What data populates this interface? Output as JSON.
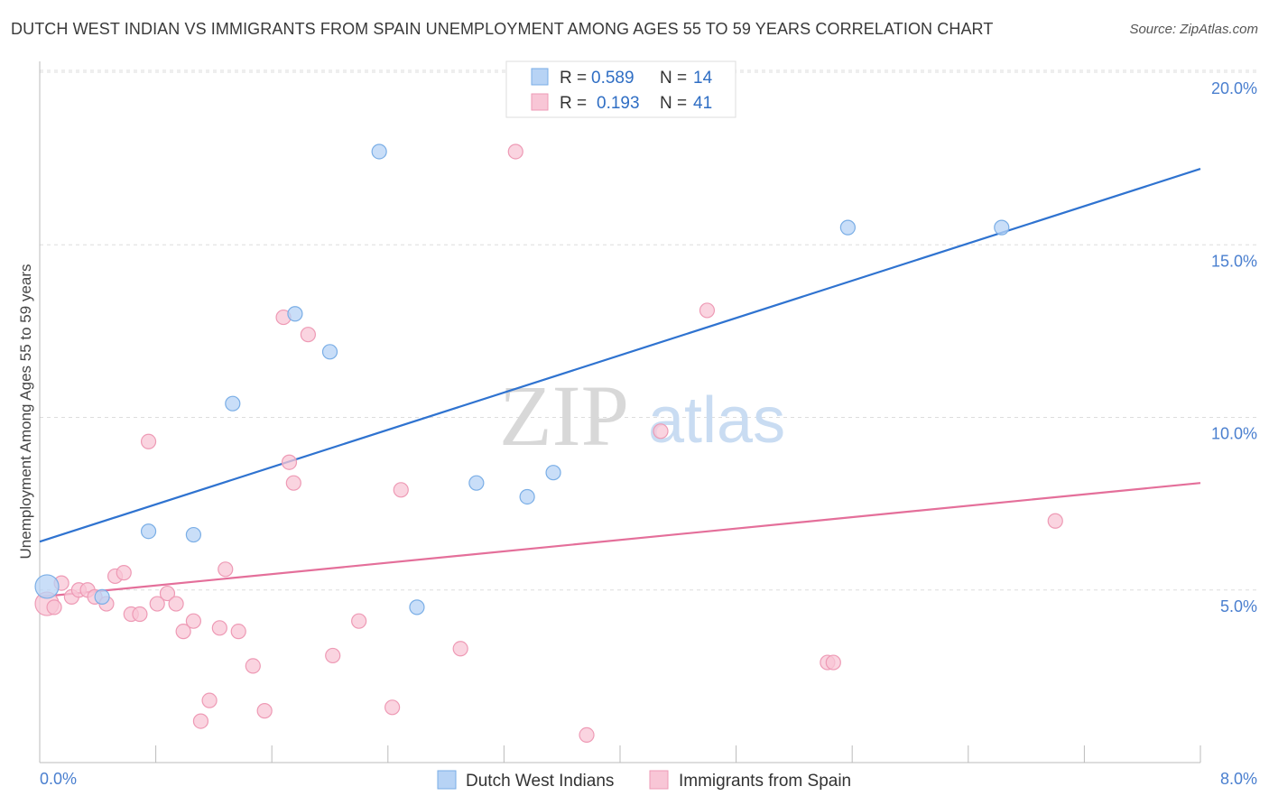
{
  "header": {
    "title": "DUTCH WEST INDIAN VS IMMIGRANTS FROM SPAIN UNEMPLOYMENT AMONG AGES 55 TO 59 YEARS CORRELATION CHART",
    "source": "Source: ZipAtlas.com"
  },
  "watermark": {
    "zip": "ZIP",
    "atlas": "atlas"
  },
  "colors": {
    "blue_fill": "#b7d3f5",
    "blue_stroke": "#7aaee6",
    "blue_line": "#2f73d0",
    "pink_fill": "#f8c6d6",
    "pink_stroke": "#ee9ab5",
    "pink_line": "#e46f9a",
    "grid": "#dddddd",
    "tick_text": "#4a7fcf"
  },
  "legend": {
    "rows": [
      {
        "r_label": "R =",
        "r_value": "0.589",
        "n_label": "N =",
        "n_value": "14"
      },
      {
        "r_label": "R =",
        "r_value": "0.193",
        "n_label": "N =",
        "n_value": "41"
      }
    ]
  },
  "chart_data": {
    "type": "scatter",
    "title": "DUTCH WEST INDIAN VS IMMIGRANTS FROM SPAIN UNEMPLOYMENT AMONG AGES 55 TO 59 YEARS CORRELATION CHART",
    "xlabel": "",
    "ylabel": "Unemployment Among Ages 55 to 59 years",
    "xlim": [
      0,
      8
    ],
    "ylim": [
      0,
      20
    ],
    "x_tick_labels": [
      "0.0%",
      "8.0%"
    ],
    "y_ticks": [
      5,
      10,
      15,
      20
    ],
    "y_tick_labels": [
      "5.0%",
      "10.0%",
      "15.0%",
      "20.0%"
    ],
    "legend_position": "top-center",
    "series": [
      {
        "name": "Dutch West Indians",
        "r": 0.589,
        "n": 14,
        "trend": {
          "x": [
            0,
            8
          ],
          "y": [
            6.4,
            17.2
          ]
        },
        "points": [
          {
            "x": 0.05,
            "y": 5.1,
            "big": true
          },
          {
            "x": 0.43,
            "y": 4.8
          },
          {
            "x": 0.75,
            "y": 6.7
          },
          {
            "x": 1.06,
            "y": 6.6
          },
          {
            "x": 1.33,
            "y": 10.4
          },
          {
            "x": 1.76,
            "y": 13.0
          },
          {
            "x": 2.0,
            "y": 11.9
          },
          {
            "x": 2.34,
            "y": 17.7
          },
          {
            "x": 2.6,
            "y": 4.5
          },
          {
            "x": 3.01,
            "y": 8.1
          },
          {
            "x": 3.36,
            "y": 7.7
          },
          {
            "x": 3.54,
            "y": 8.4
          },
          {
            "x": 5.57,
            "y": 15.5
          },
          {
            "x": 6.63,
            "y": 15.5
          }
        ]
      },
      {
        "name": "Immigrants from Spain",
        "r": 0.193,
        "n": 41,
        "trend": {
          "x": [
            0,
            8
          ],
          "y": [
            4.8,
            8.1
          ]
        },
        "points": [
          {
            "x": 0.05,
            "y": 4.6,
            "big": true
          },
          {
            "x": 0.1,
            "y": 4.5
          },
          {
            "x": 0.15,
            "y": 5.2
          },
          {
            "x": 0.22,
            "y": 4.8
          },
          {
            "x": 0.27,
            "y": 5.0
          },
          {
            "x": 0.33,
            "y": 5.0
          },
          {
            "x": 0.38,
            "y": 4.8
          },
          {
            "x": 0.46,
            "y": 4.6
          },
          {
            "x": 0.52,
            "y": 5.4
          },
          {
            "x": 0.58,
            "y": 5.5
          },
          {
            "x": 0.63,
            "y": 4.3
          },
          {
            "x": 0.69,
            "y": 4.3
          },
          {
            "x": 0.75,
            "y": 9.3
          },
          {
            "x": 0.81,
            "y": 4.6
          },
          {
            "x": 0.88,
            "y": 4.9
          },
          {
            "x": 0.94,
            "y": 4.6
          },
          {
            "x": 0.99,
            "y": 3.8
          },
          {
            "x": 1.06,
            "y": 4.1
          },
          {
            "x": 1.11,
            "y": 1.2
          },
          {
            "x": 1.17,
            "y": 1.8
          },
          {
            "x": 1.24,
            "y": 3.9
          },
          {
            "x": 1.28,
            "y": 5.6
          },
          {
            "x": 1.37,
            "y": 3.8
          },
          {
            "x": 1.47,
            "y": 2.8
          },
          {
            "x": 1.55,
            "y": 1.5
          },
          {
            "x": 1.68,
            "y": 12.9
          },
          {
            "x": 1.72,
            "y": 8.7
          },
          {
            "x": 1.75,
            "y": 8.1
          },
          {
            "x": 1.85,
            "y": 12.4
          },
          {
            "x": 2.02,
            "y": 3.1
          },
          {
            "x": 2.2,
            "y": 4.1
          },
          {
            "x": 2.43,
            "y": 1.6
          },
          {
            "x": 2.49,
            "y": 7.9
          },
          {
            "x": 2.9,
            "y": 3.3
          },
          {
            "x": 3.28,
            "y": 17.7
          },
          {
            "x": 3.77,
            "y": 0.8
          },
          {
            "x": 4.28,
            "y": 9.6
          },
          {
            "x": 4.6,
            "y": 13.1
          },
          {
            "x": 5.43,
            "y": 2.9
          },
          {
            "x": 5.47,
            "y": 2.9
          },
          {
            "x": 7.0,
            "y": 7.0
          }
        ]
      }
    ]
  }
}
